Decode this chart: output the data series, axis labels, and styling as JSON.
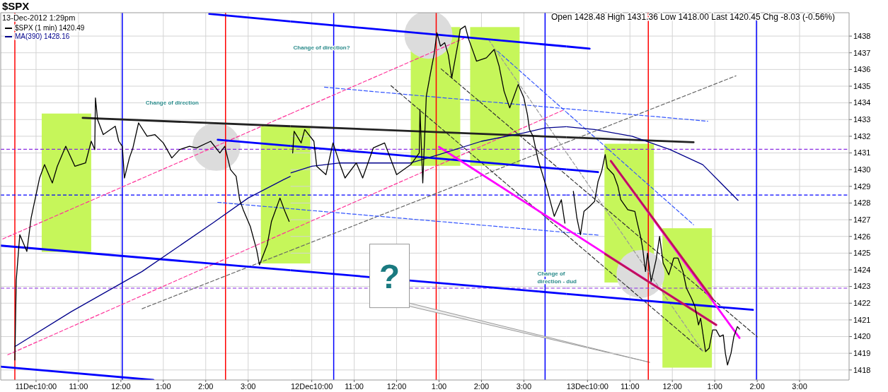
{
  "chart_data": [
    {
      "type": "line",
      "title": "$SPX",
      "subtitle": "13-Dec-2012 1:29pm",
      "legend": "top left",
      "grid": true,
      "tick_labels": "x",
      "xlim": [
        "2012-12-11T09:10",
        "2012-12-11T16:00"
      ],
      "ylim": [
        1417.4,
        1439.4
      ],
      "xticks": [
        {
          "value": "2012-12-11T10:00",
          "label": "11Dec10:00"
        },
        {
          "value": "2012-12-11T11:00",
          "label": "11:00"
        },
        {
          "value": "2012-12-11T12:00",
          "label": "12:00"
        },
        {
          "value": "2012-12-11T13:00",
          "label": "1:00"
        },
        {
          "value": "2012-12-11T14:00",
          "label": "2:00"
        },
        {
          "value": "2012-12-11T15:00",
          "label": "3:00"
        }
      ],
      "yticks": [
        1418,
        1419,
        1420,
        1421,
        1422,
        1423,
        1424,
        1425,
        1426,
        1427,
        1428,
        1429,
        1430,
        1431,
        1432,
        1433,
        1434,
        1435,
        1436,
        1437,
        1438
      ],
      "ref_lines": [
        {
          "axis": "x",
          "value": "2012-12-11T09:30",
          "color": "#ff0000"
        },
        {
          "axis": "x",
          "value": "2012-12-11T12:02",
          "color": "#0000ff"
        },
        {
          "axis": "x",
          "value": "2012-12-11T14:28",
          "color": "#ff0000"
        },
        {
          "axis": "y",
          "value": 1431.22,
          "color": "#8a2be2",
          "line_style": "dashed"
        },
        {
          "axis": "y",
          "value": 1428.48,
          "color": "#0000ff",
          "line_style": "dashed"
        },
        {
          "axis": "y",
          "value": 1422.9,
          "color": "#8a2be2",
          "line_style": "dashed"
        }
      ],
      "annotations": [
        "Change of direction"
      ],
      "series": [
        {
          "type": "bar",
          "color": "#c6f65a",
          "x": [
            "2012-12-11T10:43",
            "2012-12-11T15:53"
          ],
          "base": [
            1425.07,
            1424.38
          ],
          "values": [
            8.29,
            8.22
          ]
        },
        {
          "type": "scatter",
          "color": "#dcdcdc",
          "marker": "circle",
          "x": [
            "2012-12-11T14:15"
          ],
          "values": [
            1431.37
          ]
        },
        {
          "color": "#ff3399",
          "line_style": "dashed",
          "x": [
            "2012-12-11T09:13",
            "2012-12-11T16:00"
          ],
          "values": [
            1425.85,
            1433.35
          ]
        },
        {
          "color": "#ff3399",
          "line_style": "dashed",
          "x": [
            "2012-12-11T09:20",
            "2012-12-11T16:00"
          ],
          "values": [
            1418.91,
            1426.37
          ]
        },
        {
          "color": "#666666",
          "line_style": "dashed",
          "x": [
            "2012-12-11T12:30",
            "2012-12-11T16:00"
          ],
          "values": [
            1421.67,
            1425.16
          ]
        },
        {
          "color": "#3355ff",
          "line_style": "dashed",
          "x": [
            "2012-12-11T14:17",
            "2012-12-11T16:00"
          ],
          "values": [
            1428.04,
            1427.66
          ]
        },
        {
          "color": "#0000ff",
          "line_style": "solid",
          "x": [
            "2012-12-11T14:05",
            "2012-12-11T16:00"
          ],
          "values": [
            1439.33,
            1438.88
          ]
        },
        {
          "color": "#0000ff",
          "line_style": "solid",
          "x": [
            "2012-12-11T09:10",
            "2012-12-11T16:00"
          ],
          "values": [
            1425.45,
            1423.97
          ]
        },
        {
          "color": "#0000ff",
          "line_style": "solid",
          "x": [
            "2012-12-11T09:10",
            "2012-12-11T12:46"
          ],
          "values": [
            1418.2,
            1417.4
          ]
        },
        {
          "color": "#0000ff",
          "line_style": "solid",
          "x": [
            "2012-12-11T14:17",
            "2012-12-11T16:00"
          ],
          "values": [
            1431.79,
            1431.42
          ]
        },
        {
          "color": "#222222",
          "line_style": "solid",
          "x": [
            "2012-12-11T11:06",
            "2012-12-11T16:00"
          ],
          "values": [
            1433.1,
            1432.6
          ]
        },
        {
          "name": "MA(390) 1428.16",
          "color": "#00008b",
          "x": [
            "2012-12-11T09:30",
            "2012-12-11T10:50",
            "2012-12-11T12:30",
            "2012-12-11T14:10",
            "2012-12-11T15:00",
            "2012-12-11T15:50",
            "2012-12-11T16:00"
          ],
          "values": [
            1419.4,
            1421.5,
            1423.9,
            1426.8,
            1428.3,
            1429.4,
            1429.6
          ]
        },
        {
          "name": "$SPX (1 min) 1420.49",
          "color": "#000000",
          "x": [
            "2012-12-11T09:30",
            "2012-12-11T09:32",
            "2012-12-11T09:37",
            "2012-12-11T09:47",
            "2012-12-11T09:53",
            "2012-12-11T10:00",
            "2012-12-11T10:05",
            "2012-12-11T10:12",
            "2012-12-11T10:23",
            "2012-12-11T10:30",
            "2012-12-11T10:42",
            "2012-12-11T10:55",
            "2012-12-11T11:10",
            "2012-12-11T11:18",
            "2012-12-11T11:23",
            "2012-12-11T11:24",
            "2012-12-11T11:27",
            "2012-12-11T11:35",
            "2012-12-11T11:52",
            "2012-12-11T11:57",
            "2012-12-11T12:02",
            "2012-12-11T12:05",
            "2012-12-11T12:12",
            "2012-12-11T12:17",
            "2012-12-11T12:25",
            "2012-12-11T12:37",
            "2012-12-11T12:48",
            "2012-12-11T13:00",
            "2012-12-11T13:12",
            "2012-12-11T13:23",
            "2012-12-11T13:37",
            "2012-12-11T13:47",
            "2012-12-11T14:07",
            "2012-12-11T14:20",
            "2012-12-11T14:27",
            "2012-12-11T14:35",
            "2012-12-11T14:43",
            "2012-12-11T14:48",
            "2012-12-11T14:53",
            "2012-12-11T15:03",
            "2012-12-11T15:12",
            "2012-12-11T15:16",
            "2012-12-11T15:27",
            "2012-12-11T15:33",
            "2012-12-11T15:45",
            "2012-12-11T15:52",
            "2012-12-11T15:58"
          ],
          "values": [
            1418.6,
            1423.4,
            1426.1,
            1425.1,
            1427.1,
            1428.5,
            1429.5,
            1430.3,
            1429.2,
            1430.2,
            1431.4,
            1430.2,
            1430.4,
            1431.7,
            1431.2,
            1434.3,
            1433.0,
            1432.1,
            1432.6,
            1431.7,
            1431.4,
            1429.5,
            1430.7,
            1431.3,
            1432.8,
            1432.0,
            1432.1,
            1431.6,
            1430.7,
            1431.2,
            1431.4,
            1431.3,
            1431.7,
            1431.0,
            1431.4,
            1430.0,
            1429.6,
            1428.2,
            1427.6,
            1426.6,
            1425.2,
            1424.3,
            1425.5,
            1426.9,
            1428.3,
            1427.5,
            1426.9
          ]
        }
      ]
    },
    {
      "type": "line",
      "grid": true,
      "tick_labels": "x",
      "xlim": [
        "2012-12-12T09:30",
        "2012-12-12T16:00"
      ],
      "ylim": [
        1417.4,
        1439.4
      ],
      "xticks": [
        {
          "value": "2012-12-12T10:00",
          "label": "12Dec10:00"
        },
        {
          "value": "2012-12-12T11:00",
          "label": "11:00"
        },
        {
          "value": "2012-12-12T12:00",
          "label": "12:00"
        },
        {
          "value": "2012-12-12T13:00",
          "label": "1:00"
        },
        {
          "value": "2012-12-12T14:00",
          "label": "2:00"
        },
        {
          "value": "2012-12-12T15:00",
          "label": "3:00"
        }
      ],
      "yticks": [
        1418,
        1419,
        1420,
        1421,
        1422,
        1423,
        1424,
        1425,
        1426,
        1427,
        1428,
        1429,
        1430,
        1431,
        1432,
        1433,
        1434,
        1435,
        1436,
        1437,
        1438
      ],
      "ref_lines": [
        {
          "axis": "x",
          "value": "2012-12-12T10:31",
          "color": "#0000ff"
        },
        {
          "axis": "x",
          "value": "2012-12-12T12:56",
          "color": "#ff0000"
        },
        {
          "axis": "x",
          "value": "2012-12-12T15:30",
          "color": "#0000ff"
        },
        {
          "axis": "y",
          "value": 1431.22,
          "color": "#8a2be2",
          "line_style": "dashed"
        },
        {
          "axis": "y",
          "value": 1428.48,
          "color": "#0000ff",
          "line_style": "dashed"
        },
        {
          "axis": "y",
          "value": 1422.9,
          "color": "#8a2be2",
          "line_style": "dashed"
        }
      ],
      "annotations": [
        "Change of direction?",
        "Change of direction - dud",
        "?"
      ],
      "series": [
        {
          "type": "bar",
          "color": "#c6f65a",
          "x": [
            "2012-12-12T12:55",
            "2012-12-12T14:19"
          ],
          "base": [
            1430.23,
            1430.23
          ],
          "values": [
            8.31,
            8.31
          ]
        },
        {
          "type": "scatter",
          "color": "#dcdcdc",
          "marker": "circle",
          "x": [
            "2012-12-12T12:45"
          ],
          "values": [
            1438.08
          ]
        },
        {
          "color": "#ff3399",
          "line_style": "dashed",
          "x": [
            "2012-12-12T09:30",
            "2012-12-12T13:35"
          ],
          "values": [
            1433.35,
            1437.86
          ]
        },
        {
          "color": "#ff3399",
          "line_style": "dashed",
          "x": [
            "2012-12-12T09:30",
            "2012-12-12T15:55"
          ],
          "values": [
            1426.37,
            1433.55
          ]
        },
        {
          "color": "#666666",
          "line_style": "dashed",
          "x": [
            "2012-12-12T09:30",
            "2012-12-12T16:00"
          ],
          "values": [
            1425.16,
            1431.63
          ]
        },
        {
          "color": "#3355ff",
          "line_style": "dashed",
          "x": [
            "2012-12-12T10:18",
            "2012-12-12T16:00"
          ],
          "values": [
            1434.94,
            1433.65
          ]
        },
        {
          "color": "#3355ff",
          "line_style": "dashed",
          "x": [
            "2012-12-12T09:30",
            "2012-12-12T16:00"
          ],
          "values": [
            1427.66,
            1426.24
          ]
        },
        {
          "color": "#3355ff",
          "line_style": "dashed",
          "x": [
            "2012-12-12T14:23",
            "2012-12-12T16:00"
          ],
          "values": [
            1437.09,
            1433.45
          ]
        },
        {
          "color": "#333333",
          "line_style": "dashed",
          "x": [
            "2012-12-12T11:52",
            "2012-12-12T16:00"
          ],
          "values": [
            1435.03,
            1426.1
          ]
        },
        {
          "color": "#333333",
          "line_style": "dashed",
          "x": [
            "2012-12-12T13:03",
            "2012-12-12T16:00"
          ],
          "values": [
            1436.03,
            1429.68
          ]
        },
        {
          "color": "#999999",
          "line_style": "dashed",
          "x": [
            "2012-12-12T14:10",
            "2012-12-12T16:00"
          ],
          "values": [
            1437.79,
            1431.03
          ]
        },
        {
          "color": "#0000ff",
          "line_style": "solid",
          "x": [
            "2012-12-12T09:30",
            "2012-12-12T16:00"
          ],
          "values": [
            1438.88,
            1437.38
          ]
        },
        {
          "color": "#0000ff",
          "line_style": "solid",
          "x": [
            "2012-12-12T09:30",
            "2012-12-12T16:00"
          ],
          "values": [
            1423.97,
            1422.56
          ]
        },
        {
          "color": "#0000ff",
          "line_style": "solid",
          "x": [
            "2012-12-12T09:30",
            "2012-12-12T16:00"
          ],
          "values": [
            1431.42,
            1430.01
          ]
        },
        {
          "color": "#222222",
          "line_style": "solid",
          "x": [
            "2012-12-12T09:30",
            "2012-12-12T16:00"
          ],
          "values": [
            1432.6,
            1431.94
          ]
        },
        {
          "color": "#ff00ff",
          "line_style": "solid",
          "x": [
            "2012-12-12T13:00",
            "2012-12-12T16:00"
          ],
          "values": [
            1431.36,
            1426.46
          ]
        },
        {
          "color": "#00008b",
          "x": [
            "2012-12-12T09:30",
            "2012-12-12T10:00",
            "2012-12-12T10:40",
            "2012-12-12T11:30",
            "2012-12-12T12:20",
            "2012-12-12T13:00",
            "2012-12-12T14:00",
            "2012-12-12T15:00",
            "2012-12-12T15:30",
            "2012-12-12T16:00"
          ],
          "values": [
            1429.8,
            1430.2,
            1430.4,
            1430.4,
            1430.4,
            1430.9,
            1431.7,
            1432.2,
            1432.5,
            1432.57
          ]
        },
        {
          "color": "#000000",
          "x": [
            "2012-12-12T09:33",
            "2012-12-12T09:35",
            "2012-12-12T09:45",
            "2012-12-12T09:50",
            "2012-12-12T10:03",
            "2012-12-12T10:07",
            "2012-12-12T10:20",
            "2012-12-12T10:30",
            "2012-12-12T10:40",
            "2012-12-12T10:47",
            "2012-12-12T11:03",
            "2012-12-12T11:12",
            "2012-12-12T11:27",
            "2012-12-12T11:43",
            "2012-12-12T12:00",
            "2012-12-12T12:20",
            "2012-12-12T12:32",
            "2012-12-12T12:33",
            "2012-12-12T12:37",
            "2012-12-12T12:42",
            "2012-12-12T12:48",
            "2012-12-12T12:53",
            "2012-12-12T12:57",
            "2012-12-12T13:02",
            "2012-12-12T13:08",
            "2012-12-12T13:13",
            "2012-12-12T13:18",
            "2012-12-12T13:27",
            "2012-12-12T13:30",
            "2012-12-12T13:37",
            "2012-12-12T13:42",
            "2012-12-12T13:48",
            "2012-12-12T13:53",
            "2012-12-12T14:07",
            "2012-12-12T14:18",
            "2012-12-12T14:25",
            "2012-12-12T14:32",
            "2012-12-12T14:40",
            "2012-12-12T14:52",
            "2012-12-12T15:00",
            "2012-12-12T15:05",
            "2012-12-12T15:08",
            "2012-12-12T15:13",
            "2012-12-12T15:20",
            "2012-12-12T15:33",
            "2012-12-12T15:43",
            "2012-12-12T15:53",
            "2012-12-12T15:58"
          ],
          "values": [
            1431.0,
            1432.3,
            1431.6,
            1432.4,
            1431.7,
            1430.2,
            1429.7,
            1431.6,
            1430.3,
            1429.5,
            1430.4,
            1429.5,
            1431.3,
            1431.6,
            1429.7,
            1430.3,
            1431.0,
            1433.6,
            1429.2,
            1434.4,
            1435.8,
            1436.9,
            1438.2,
            1437.4,
            1437.6,
            1436.9,
            1435.5,
            1437.6,
            1438.4,
            1438.6,
            1437.8,
            1437.1,
            1436.5,
            1436.7,
            1437.2,
            1436.2,
            1434.7,
            1433.7,
            1435.1,
            1434.3,
            1433.3,
            1432.4,
            1432.0,
            1430.6,
            1428.8,
            1427.2,
            1428.2,
            1426.8
          ]
        }
      ]
    },
    {
      "type": "line",
      "grid": true,
      "xlim": [
        "2012-12-13T09:30",
        "2012-12-13T16:10"
      ],
      "ylim": [
        1417.4,
        1439.4
      ],
      "xticks": [
        {
          "value": "2012-12-13T10:00",
          "label": "13Dec10:00"
        },
        {
          "value": "2012-12-13T11:00",
          "label": "11:00"
        },
        {
          "value": "2012-12-13T12:00",
          "label": "12:00"
        },
        {
          "value": "2012-12-13T13:00",
          "label": "1:00"
        },
        {
          "value": "2012-12-13T14:00",
          "label": "2:00"
        },
        {
          "value": "2012-12-13T15:00",
          "label": "3:00"
        }
      ],
      "yticks": [
        1418,
        1419,
        1420,
        1421,
        1422,
        1423,
        1424,
        1425,
        1426,
        1427,
        1428,
        1429,
        1430,
        1431,
        1432,
        1433,
        1434,
        1435,
        1436,
        1437,
        1438
      ],
      "ref_lines": [
        {
          "axis": "x",
          "value": "2012-12-13T11:26",
          "color": "#ff0000"
        },
        {
          "axis": "x",
          "value": "2012-12-13T13:59",
          "color": "#0000ff"
        },
        {
          "axis": "y",
          "value": 1431.22,
          "color": "#8a2be2",
          "line_style": "dashed"
        },
        {
          "axis": "y",
          "value": 1428.48,
          "color": "#0000ff",
          "line_style": "dashed"
        },
        {
          "axis": "y",
          "value": 1422.9,
          "color": "#8a2be2",
          "line_style": "dashed"
        }
      ],
      "annotations": [
        "Open 1428.48 High 1431.36 Low 1418.00 Last 1420.45 Chg -8.03 (-0.56%)"
      ],
      "series": [
        {
          "type": "bar",
          "color": "#c6f65a",
          "x": [
            "2012-12-13T10:59",
            "2012-12-13T12:21"
          ],
          "base": [
            1423.24,
            1418.14
          ],
          "values": [
            8.31,
            8.35
          ]
        },
        {
          "type": "scatter",
          "color": "#dcdcdc",
          "marker": "circle",
          "x": [
            "2012-12-13T11:15"
          ],
          "values": [
            1423.75
          ]
        },
        {
          "color": "#666666",
          "line_style": "dashed",
          "x": [
            "2012-12-13T09:30",
            "2012-12-13T13:30"
          ],
          "values": [
            1431.63,
            1435.62
          ]
        },
        {
          "color": "#3355ff",
          "line_style": "dashed",
          "x": [
            "2012-12-13T09:30",
            "2012-12-13T12:50"
          ],
          "values": [
            1433.65,
            1432.9
          ]
        },
        {
          "color": "#3355ff",
          "line_style": "dashed",
          "x": [
            "2012-12-13T09:30",
            "2012-12-13T10:17"
          ],
          "values": [
            1426.24,
            1426.07
          ]
        },
        {
          "color": "#3355ff",
          "line_style": "dashed",
          "x": [
            "2012-12-13T09:30",
            "2012-12-13T12:30"
          ],
          "values": [
            1433.45,
            1426.7
          ]
        },
        {
          "color": "#333333",
          "line_style": "dashed",
          "x": [
            "2012-12-13T09:30",
            "2012-12-13T12:43"
          ],
          "values": [
            1426.1,
            1419.14
          ]
        },
        {
          "color": "#333333",
          "line_style": "dashed",
          "x": [
            "2012-12-13T09:30",
            "2012-12-13T14:00"
          ],
          "values": [
            1429.68,
            1419.99
          ]
        },
        {
          "color": "#999999",
          "line_style": "dashed",
          "x": [
            "2012-12-13T09:30",
            "2012-12-13T12:43"
          ],
          "values": [
            1431.03,
            1419.14
          ]
        },
        {
          "color": "#0000ff",
          "line_style": "solid",
          "x": [
            "2012-12-13T09:30",
            "2012-12-13T10:03"
          ],
          "values": [
            1437.38,
            1437.25
          ]
        },
        {
          "color": "#0000ff",
          "line_style": "solid",
          "x": [
            "2012-12-13T09:30",
            "2012-12-13T13:54"
          ],
          "values": [
            1422.56,
            1421.6
          ]
        },
        {
          "color": "#0000ff",
          "line_style": "solid",
          "x": [
            "2012-12-13T09:30",
            "2012-12-13T10:15"
          ],
          "values": [
            1430.01,
            1429.85
          ]
        },
        {
          "color": "#222222",
          "line_style": "solid",
          "x": [
            "2012-12-13T09:30",
            "2012-12-13T12:30"
          ],
          "values": [
            1431.94,
            1431.64
          ]
        },
        {
          "color": "#ff00ff",
          "line_style": "solid",
          "x": [
            "2012-12-13T09:30",
            "2012-12-13T13:02"
          ],
          "values": [
            1426.46,
            1420.7
          ]
        },
        {
          "color": "#ff00ff",
          "line_style": "solid",
          "x": [
            "2012-12-13T10:33",
            "2012-12-13T13:35"
          ],
          "values": [
            1430.52,
            1419.92
          ]
        },
        {
          "color": "#c0145a",
          "line_style": "solid",
          "x": [
            "2012-12-13T10:25",
            "2012-12-13T13:02"
          ],
          "values": [
            1424.94,
            1420.7
          ]
        },
        {
          "color": "#c0145a",
          "line_style": "solid",
          "x": [
            "2012-12-13T10:33",
            "2012-12-13T12:57"
          ],
          "values": [
            1430.52,
            1422.25
          ]
        },
        {
          "color": "#00008b",
          "x": [
            "2012-12-13T09:30",
            "2012-12-13T10:10",
            "2012-12-13T11:03",
            "2012-12-13T11:57",
            "2012-12-13T12:43",
            "2012-12-13T13:33"
          ],
          "values": [
            1432.57,
            1432.4,
            1432.0,
            1431.2,
            1430.3,
            1428.16
          ]
        },
        {
          "color": "#000000",
          "x": [
            "2012-12-13T09:40",
            "2012-12-13T09:45",
            "2012-12-13T09:50",
            "2012-12-13T09:55",
            "2012-12-13T10:03",
            "2012-12-13T10:10",
            "2012-12-13T10:15",
            "2012-12-13T10:20",
            "2012-12-13T10:25",
            "2012-12-13T10:28",
            "2012-12-13T10:37",
            "2012-12-13T10:43",
            "2012-12-13T10:47",
            "2012-12-13T10:57",
            "2012-12-13T11:07",
            "2012-12-13T11:10",
            "2012-12-13T11:15",
            "2012-12-13T11:18",
            "2012-12-13T11:22",
            "2012-12-13T11:25",
            "2012-12-13T11:30",
            "2012-12-13T11:37",
            "2012-12-13T11:42",
            "2012-12-13T11:47",
            "2012-12-13T11:55",
            "2012-12-13T12:02",
            "2012-12-13T12:08",
            "2012-12-13T12:15",
            "2012-12-13T12:20",
            "2012-12-13T12:27",
            "2012-12-13T12:32",
            "2012-12-13T12:37",
            "2012-12-13T12:40",
            "2012-12-13T12:47",
            "2012-12-13T12:52",
            "2012-12-13T12:57",
            "2012-12-13T13:02",
            "2012-12-13T13:07",
            "2012-12-13T13:12",
            "2012-12-13T13:15",
            "2012-12-13T13:18",
            "2012-12-13T13:23",
            "2012-12-13T13:27",
            "2012-12-13T13:32",
            "2012-12-13T13:35"
          ],
          "values": [
            1428.7,
            1427.1,
            1426.1,
            1427.5,
            1427.8,
            1428.1,
            1429.3,
            1429.9,
            1430.9,
            1430.1,
            1429.7,
            1429.0,
            1428.2,
            1427.6,
            1427.5,
            1426.9,
            1426.0,
            1425.3,
            1423.9,
            1425.0,
            1423.3,
            1424.6,
            1426.0,
            1424.4,
            1423.7,
            1424.7,
            1424.7,
            1423.9,
            1422.9,
            1422.3,
            1421.8,
            1420.7,
            1421.1,
            1419.1,
            1419.3,
            1420.4,
            1420.4,
            1420.0,
            1420.1,
            1419.0,
            1418.3,
            1419.0,
            1420.0,
            1420.6,
            1420.45
          ]
        }
      ]
    }
  ]
}
